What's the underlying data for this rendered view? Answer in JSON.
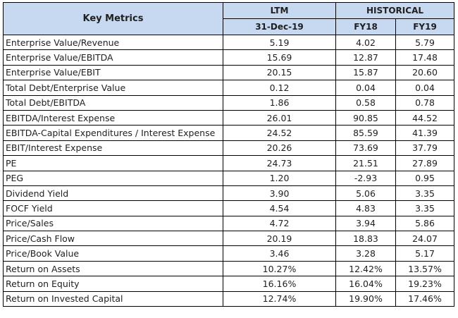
{
  "header": {
    "key_metrics": "Key Metrics",
    "ltm": "LTM",
    "historical": "HISTORICAL",
    "ltm_date": "31-Dec-19",
    "fy18": "FY18",
    "fy19": "FY19"
  },
  "rows": [
    {
      "label": "Enterprise Value/Revenue",
      "ltm": "5.19",
      "fy18": "4.02",
      "fy19": "5.79"
    },
    {
      "label": "Enterprise Value/EBITDA",
      "ltm": "15.69",
      "fy18": "12.87",
      "fy19": "17.48"
    },
    {
      "label": "Enterprise Value/EBIT",
      "ltm": "20.15",
      "fy18": "15.87",
      "fy19": "20.60"
    },
    {
      "label": "Total Debt/Enterprise Value",
      "ltm": "0.12",
      "fy18": "0.04",
      "fy19": "0.04"
    },
    {
      "label": "Total Debt/EBITDA",
      "ltm": "1.86",
      "fy18": "0.58",
      "fy19": "0.78"
    },
    {
      "label": "EBITDA/Interest Expense",
      "ltm": "26.01",
      "fy18": "90.85",
      "fy19": "44.52"
    },
    {
      "label": "EBITDA-Capital Expenditures / Interest Expense",
      "ltm": "24.52",
      "fy18": "85.59",
      "fy19": "41.39"
    },
    {
      "label": "EBIT/Interest Expense",
      "ltm": "20.26",
      "fy18": "73.69",
      "fy19": "37.79"
    },
    {
      "label": "PE",
      "ltm": "24.73",
      "fy18": "21.51",
      "fy19": "27.89"
    },
    {
      "label": "PEG",
      "ltm": "1.20",
      "fy18": "-2.93",
      "fy19": "0.95"
    },
    {
      "label": "Dividend Yield",
      "ltm": "3.90",
      "fy18": "5.06",
      "fy19": "3.35"
    },
    {
      "label": "FOCF Yield",
      "ltm": "4.54",
      "fy18": "4.83",
      "fy19": "3.35"
    },
    {
      "label": "Price/Sales",
      "ltm": "4.72",
      "fy18": "3.94",
      "fy19": "5.86"
    },
    {
      "label": "Price/Cash Flow",
      "ltm": "20.19",
      "fy18": "18.83",
      "fy19": "24.07"
    },
    {
      "label": "Price/Book Value",
      "ltm": "3.46",
      "fy18": "3.28",
      "fy19": "5.17"
    },
    {
      "label": "Return on Assets",
      "ltm": "10.27%",
      "fy18": "12.42%",
      "fy19": "13.57%"
    },
    {
      "label": "Return on Equity",
      "ltm": "16.16%",
      "fy18": "16.04%",
      "fy19": "19.23%"
    },
    {
      "label": "Return on Invested Capital",
      "ltm": "12.74%",
      "fy18": "19.90%",
      "fy19": "17.46%"
    }
  ]
}
